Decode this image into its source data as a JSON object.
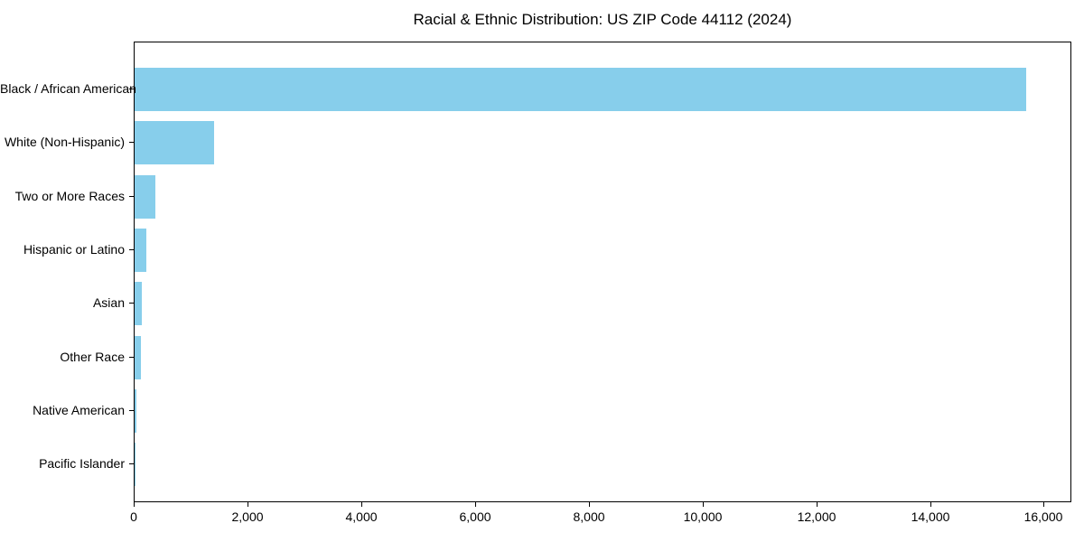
{
  "chart_data": {
    "type": "bar",
    "orientation": "horizontal",
    "title": "Racial & Ethnic Distribution: US ZIP Code 44112 (2024)",
    "categories": [
      "Black / African American",
      "White (Non-Hispanic)",
      "Two or More Races",
      "Hispanic or Latino",
      "Asian",
      "Other Race",
      "Native American",
      "Pacific Islander"
    ],
    "values": [
      15700,
      1400,
      360,
      200,
      130,
      110,
      25,
      5
    ],
    "xlabel": "",
    "ylabel": "",
    "xlim": [
      0,
      16485
    ],
    "xticks": {
      "values": [
        0,
        2000,
        4000,
        6000,
        8000,
        10000,
        12000,
        14000,
        16000
      ],
      "labels": [
        "0",
        "2,000",
        "4,000",
        "6,000",
        "8,000",
        "10,000",
        "12,000",
        "14,000",
        "16,000"
      ]
    },
    "grid": false,
    "legend_position": "none",
    "bar_color": "#87CEEB",
    "axis_color": "#000000",
    "background_color": "#FFFFFF"
  }
}
